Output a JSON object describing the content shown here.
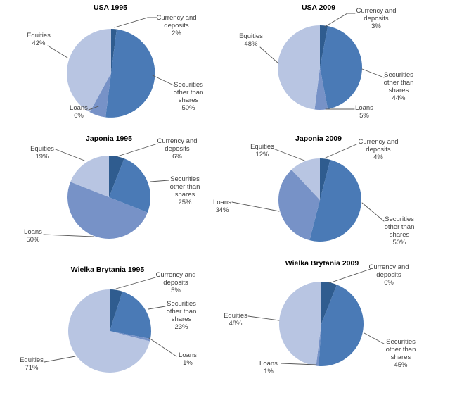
{
  "style": {
    "background": "#ffffff",
    "title_color": "#000000",
    "label_color": "#3f3f3f",
    "leader_line_color": "#595959",
    "segment_colors": {
      "Currency and deposits": "#2F5C8F",
      "Securities other than shares": "#4A7AB6",
      "Loans": "#7792C7",
      "Equities": "#B8C5E2"
    }
  },
  "chart_data": [
    {
      "type": "pie",
      "title": "USA 1995",
      "categories": [
        "Currency and deposits",
        "Securities other than shares",
        "Loans",
        "Equities"
      ],
      "values": [
        2,
        50,
        6,
        42
      ],
      "value_labels": [
        "2%",
        "50%",
        "6%",
        "42%"
      ],
      "legend": "none",
      "labels": "outside-with-leader-lines",
      "start_angle": "top",
      "direction": "clockwise"
    },
    {
      "type": "pie",
      "title": "USA 2009",
      "categories": [
        "Currency and deposits",
        "Securities other than shares",
        "Loans",
        "Equities"
      ],
      "values": [
        3,
        44,
        5,
        48
      ],
      "value_labels": [
        "3%",
        "44%",
        "5%",
        "48%"
      ],
      "legend": "none",
      "labels": "outside-with-leader-lines",
      "start_angle": "top",
      "direction": "clockwise"
    },
    {
      "type": "pie",
      "title": "Japonia 1995",
      "categories": [
        "Currency and deposits",
        "Securities other than shares",
        "Loans",
        "Equities"
      ],
      "values": [
        6,
        25,
        50,
        19
      ],
      "value_labels": [
        "6%",
        "25%",
        "50%",
        "19%"
      ],
      "legend": "none",
      "labels": "outside-with-leader-lines",
      "start_angle": "top",
      "direction": "clockwise"
    },
    {
      "type": "pie",
      "title": "Japonia 2009",
      "categories": [
        "Currency and deposits",
        "Securities other than shares",
        "Loans",
        "Equities"
      ],
      "values": [
        4,
        50,
        34,
        12
      ],
      "value_labels": [
        "4%",
        "50%",
        "34%",
        "12%"
      ],
      "legend": "none",
      "labels": "outside-with-leader-lines",
      "start_angle": "top",
      "direction": "clockwise"
    },
    {
      "type": "pie",
      "title": "Wielka Brytania 1995",
      "categories": [
        "Currency and deposits",
        "Securities other than shares",
        "Loans",
        "Equities"
      ],
      "values": [
        5,
        23,
        1,
        71
      ],
      "value_labels": [
        "5%",
        "23%",
        "1%",
        "71%"
      ],
      "legend": "none",
      "labels": "outside-with-leader-lines",
      "start_angle": "top",
      "direction": "clockwise"
    },
    {
      "type": "pie",
      "title": "Wielka Brytania 2009",
      "categories": [
        "Currency and deposits",
        "Securities other than shares",
        "Loans",
        "Equities"
      ],
      "values": [
        6,
        45,
        1,
        48
      ],
      "value_labels": [
        "6%",
        "45%",
        "1%",
        "48%"
      ],
      "legend": "none",
      "labels": "outside-with-leader-lines",
      "start_angle": "top",
      "direction": "clockwise"
    }
  ]
}
